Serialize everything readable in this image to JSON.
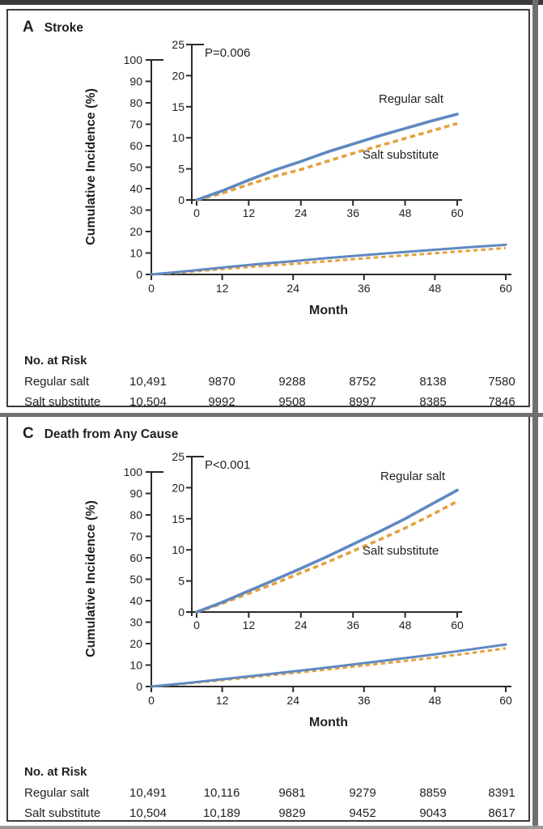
{
  "colors": {
    "regular_salt_line": "#5f88c1",
    "salt_substitute_line": "#e3a23e",
    "axis": "#2d2a2a",
    "text": "#231f20",
    "panel_border": "#3d3d3d",
    "grid_rule": "#6f6f6f",
    "top_rule": "#3b3b3b"
  },
  "chart_data": [
    {
      "type": "line",
      "panel_letter": "A",
      "title": "Stroke",
      "p_value": "P=0.006",
      "xlabel": "Month",
      "ylabel": "Cumulative Incidence (%)",
      "x": [
        0,
        6,
        12,
        18,
        24,
        30,
        36,
        42,
        48,
        54,
        60
      ],
      "x_ticks": [
        0,
        12,
        24,
        36,
        48,
        60
      ],
      "main_axis": {
        "ylim": [
          0,
          100
        ],
        "yticks": [
          0,
          10,
          20,
          30,
          40,
          50,
          60,
          70,
          80,
          90,
          100
        ]
      },
      "inset_axis": {
        "ylim": [
          0,
          25
        ],
        "yticks": [
          0,
          5,
          10,
          15,
          20,
          25
        ]
      },
      "legend_style": "inline-labels",
      "grid": false,
      "series": [
        {
          "name": "Regular salt",
          "color": "#5f88c1",
          "line_style": "solid",
          "values": [
            0,
            1.5,
            3.2,
            4.8,
            6.2,
            7.7,
            9.0,
            10.3,
            11.5,
            12.7,
            13.8
          ]
        },
        {
          "name": "Salt substitute",
          "color": "#e3a23e",
          "line_style": "dashed",
          "values": [
            0,
            1.1,
            2.5,
            3.8,
            4.9,
            6.2,
            7.5,
            8.7,
            9.9,
            11.1,
            12.3
          ]
        }
      ],
      "at_risk": {
        "heading": "No. at Risk",
        "rows": [
          {
            "label": "Regular salt",
            "values": [
              "10,491",
              "9870",
              "9288",
              "8752",
              "8138",
              "7580"
            ]
          },
          {
            "label": "Salt substitute",
            "values": [
              "10,504",
              "9992",
              "9508",
              "8997",
              "8385",
              "7846"
            ]
          }
        ]
      }
    },
    {
      "type": "line",
      "panel_letter": "C",
      "title": "Death from Any Cause",
      "p_value": "P<0.001",
      "xlabel": "Month",
      "ylabel": "Cumulative Incidence (%)",
      "x": [
        0,
        6,
        12,
        18,
        24,
        30,
        36,
        42,
        48,
        54,
        60
      ],
      "x_ticks": [
        0,
        12,
        24,
        36,
        48,
        60
      ],
      "main_axis": {
        "ylim": [
          0,
          100
        ],
        "yticks": [
          0,
          10,
          20,
          30,
          40,
          50,
          60,
          70,
          80,
          90,
          100
        ]
      },
      "inset_axis": {
        "ylim": [
          0,
          25
        ],
        "yticks": [
          0,
          5,
          10,
          15,
          20,
          25
        ]
      },
      "legend_style": "inline-labels",
      "grid": false,
      "series": [
        {
          "name": "Regular salt",
          "color": "#5f88c1",
          "line_style": "solid",
          "values": [
            0,
            1.6,
            3.4,
            5.2,
            7.0,
            8.9,
            10.9,
            12.9,
            15.0,
            17.3,
            19.6
          ]
        },
        {
          "name": "Salt substitute",
          "color": "#e3a23e",
          "line_style": "dashed",
          "values": [
            0,
            1.4,
            3.0,
            4.6,
            6.3,
            8.0,
            9.8,
            11.6,
            13.5,
            15.6,
            17.8
          ]
        }
      ],
      "at_risk": {
        "heading": "No. at Risk",
        "rows": [
          {
            "label": "Regular salt",
            "values": [
              "10,491",
              "10,116",
              "9681",
              "9279",
              "8859",
              "8391"
            ]
          },
          {
            "label": "Salt substitute",
            "values": [
              "10,504",
              "10,189",
              "9829",
              "9452",
              "9043",
              "8617"
            ]
          }
        ]
      }
    }
  ]
}
